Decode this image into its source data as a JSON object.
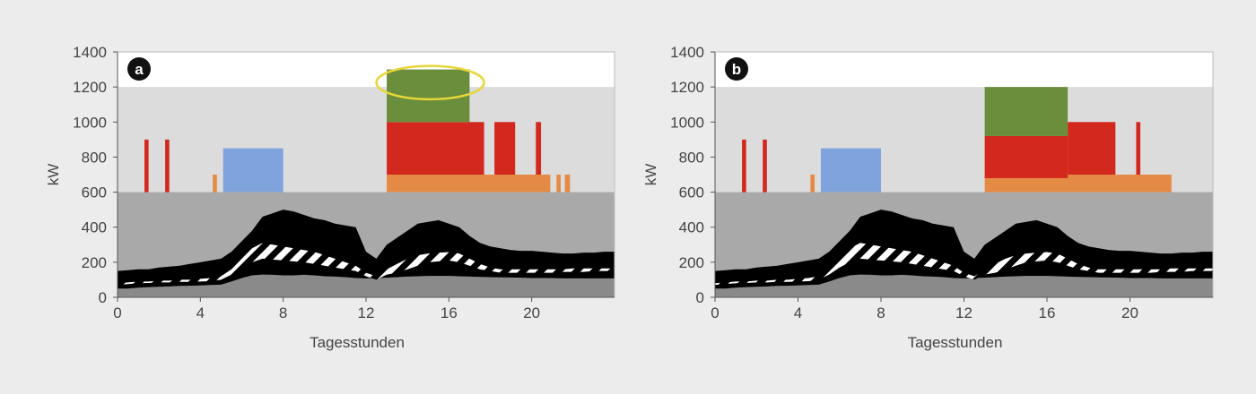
{
  "chart_data": [
    {
      "type": "bar",
      "panel_label": "a",
      "xlabel": "Tagesstunden",
      "ylabel": "kW",
      "xlim": [
        0,
        24
      ],
      "ylim": [
        0,
        1400
      ],
      "x_ticks": [
        0,
        4,
        8,
        12,
        16,
        20
      ],
      "y_ticks": [
        0,
        200,
        400,
        600,
        800,
        1000,
        1200,
        1400
      ],
      "background_bands": [
        {
          "y0": 1200,
          "y1": 1400,
          "color": "#ffffff"
        },
        {
          "y0": 600,
          "y1": 1200,
          "color": "#dcdcdc"
        },
        {
          "y0": 0,
          "y1": 600,
          "color": "#a9a9a9"
        }
      ],
      "blocks": [
        {
          "x0": 1.3,
          "x1": 1.5,
          "y0": 600,
          "y1": 900,
          "color": "#d2281e"
        },
        {
          "x0": 2.3,
          "x1": 2.5,
          "y0": 600,
          "y1": 900,
          "color": "#d2281e"
        },
        {
          "x0": 4.6,
          "x1": 4.8,
          "y0": 600,
          "y1": 700,
          "color": "#e58a45"
        },
        {
          "x0": 5.1,
          "x1": 8.0,
          "y0": 600,
          "y1": 850,
          "color": "#7fa3dc"
        },
        {
          "x0": 13.0,
          "x1": 20.9,
          "y0": 600,
          "y1": 700,
          "color": "#e58a45"
        },
        {
          "x0": 21.2,
          "x1": 21.4,
          "y0": 600,
          "y1": 700,
          "color": "#e58a45"
        },
        {
          "x0": 21.6,
          "x1": 21.85,
          "y0": 600,
          "y1": 700,
          "color": "#e58a45"
        },
        {
          "x0": 13.0,
          "x1": 17.7,
          "y0": 700,
          "y1": 1000,
          "color": "#d2281e"
        },
        {
          "x0": 18.2,
          "x1": 19.2,
          "y0": 700,
          "y1": 1000,
          "color": "#d2281e"
        },
        {
          "x0": 20.2,
          "x1": 20.45,
          "y0": 700,
          "y1": 1000,
          "color": "#d2281e"
        },
        {
          "x0": 13.0,
          "x1": 17.0,
          "y0": 1000,
          "y1": 1300,
          "color": "#6b8e3c"
        }
      ],
      "highlight": {
        "cx": 15.1,
        "cy": 1225,
        "rx": 2.6,
        "ry": 95,
        "color": "#e9d63a"
      },
      "load_profile": {
        "x": [
          0,
          0.5,
          1,
          1.5,
          2,
          2.5,
          3,
          3.5,
          4,
          4.5,
          5,
          5.5,
          6,
          6.5,
          7,
          7.5,
          8,
          8.5,
          9,
          9.5,
          10,
          10.5,
          11,
          11.5,
          12,
          12.5,
          13,
          13.5,
          14,
          14.5,
          15,
          15.5,
          16,
          16.5,
          17,
          17.5,
          18,
          18.5,
          19,
          19.5,
          20,
          20.5,
          21,
          21.5,
          22,
          22.5,
          23,
          23.5,
          24
        ],
        "base": [
          50,
          50,
          55,
          58,
          60,
          62,
          65,
          66,
          68,
          70,
          72,
          90,
          110,
          125,
          130,
          128,
          125,
          125,
          128,
          125,
          120,
          118,
          115,
          110,
          108,
          110,
          112,
          115,
          118,
          120,
          122,
          122,
          122,
          120,
          118,
          116,
          115,
          114,
          113,
          112,
          110,
          110,
          110,
          108,
          108,
          108,
          108,
          108,
          108
        ],
        "lower": [
          70,
          75,
          80,
          82,
          85,
          85,
          88,
          88,
          90,
          92,
          100,
          130,
          170,
          200,
          220,
          215,
          210,
          205,
          200,
          190,
          180,
          170,
          160,
          150,
          120,
          100,
          130,
          140,
          160,
          180,
          200,
          205,
          210,
          200,
          180,
          160,
          150,
          140,
          140,
          140,
          140,
          140,
          140,
          145,
          145,
          145,
          150,
          150,
          150
        ],
        "mid": [
          80,
          85,
          90,
          90,
          95,
          95,
          100,
          100,
          105,
          110,
          120,
          160,
          220,
          280,
          310,
          300,
          290,
          280,
          270,
          260,
          240,
          220,
          200,
          180,
          140,
          120,
          160,
          190,
          220,
          240,
          250,
          255,
          258,
          250,
          220,
          190,
          170,
          160,
          160,
          160,
          160,
          160,
          160,
          160,
          165,
          165,
          165,
          165,
          165
        ],
        "upper": [
          150,
          155,
          160,
          160,
          170,
          175,
          180,
          190,
          200,
          210,
          220,
          260,
          320,
          380,
          460,
          480,
          500,
          490,
          470,
          450,
          440,
          420,
          410,
          400,
          260,
          220,
          300,
          340,
          380,
          420,
          430,
          440,
          420,
          400,
          350,
          310,
          290,
          280,
          270,
          265,
          265,
          260,
          255,
          250,
          250,
          255,
          255,
          260,
          260
        ]
      }
    },
    {
      "type": "bar",
      "panel_label": "b",
      "xlabel": "Tagesstunden",
      "ylabel": "kW",
      "xlim": [
        0,
        24
      ],
      "ylim": [
        0,
        1400
      ],
      "x_ticks": [
        0,
        4,
        8,
        12,
        16,
        20
      ],
      "y_ticks": [
        0,
        200,
        400,
        600,
        800,
        1000,
        1200,
        1400
      ],
      "background_bands": [
        {
          "y0": 1200,
          "y1": 1400,
          "color": "#ffffff"
        },
        {
          "y0": 600,
          "y1": 1200,
          "color": "#dcdcdc"
        },
        {
          "y0": 0,
          "y1": 600,
          "color": "#a9a9a9"
        }
      ],
      "blocks": [
        {
          "x0": 1.3,
          "x1": 1.5,
          "y0": 600,
          "y1": 900,
          "color": "#d2281e"
        },
        {
          "x0": 2.3,
          "x1": 2.5,
          "y0": 600,
          "y1": 900,
          "color": "#d2281e"
        },
        {
          "x0": 4.6,
          "x1": 4.8,
          "y0": 600,
          "y1": 700,
          "color": "#e58a45"
        },
        {
          "x0": 5.1,
          "x1": 8.0,
          "y0": 600,
          "y1": 850,
          "color": "#7fa3dc"
        },
        {
          "x0": 13.0,
          "x1": 22.0,
          "y0": 600,
          "y1": 700,
          "color": "#e58a45"
        },
        {
          "x0": 13.0,
          "x1": 17.0,
          "y0": 680,
          "y1": 920,
          "color": "#d2281e"
        },
        {
          "x0": 17.0,
          "x1": 19.3,
          "y0": 700,
          "y1": 1000,
          "color": "#d2281e"
        },
        {
          "x0": 20.3,
          "x1": 20.5,
          "y0": 700,
          "y1": 1000,
          "color": "#d2281e"
        },
        {
          "x0": 13.0,
          "x1": 17.0,
          "y0": 920,
          "y1": 1200,
          "color": "#6b8e3c"
        }
      ],
      "load_profile": {
        "x": [
          0,
          0.5,
          1,
          1.5,
          2,
          2.5,
          3,
          3.5,
          4,
          4.5,
          5,
          5.5,
          6,
          6.5,
          7,
          7.5,
          8,
          8.5,
          9,
          9.5,
          10,
          10.5,
          11,
          11.5,
          12,
          12.5,
          13,
          13.5,
          14,
          14.5,
          15,
          15.5,
          16,
          16.5,
          17,
          17.5,
          18,
          18.5,
          19,
          19.5,
          20,
          20.5,
          21,
          21.5,
          22,
          22.5,
          23,
          23.5,
          24
        ],
        "base": [
          50,
          50,
          55,
          58,
          60,
          62,
          65,
          66,
          68,
          70,
          72,
          90,
          110,
          125,
          130,
          128,
          125,
          125,
          128,
          125,
          120,
          118,
          115,
          110,
          108,
          110,
          112,
          115,
          118,
          120,
          122,
          122,
          122,
          120,
          118,
          116,
          115,
          114,
          113,
          112,
          110,
          110,
          110,
          108,
          108,
          108,
          108,
          108,
          108
        ],
        "lower": [
          70,
          75,
          80,
          82,
          85,
          85,
          88,
          88,
          90,
          92,
          100,
          130,
          170,
          200,
          220,
          215,
          210,
          205,
          200,
          190,
          180,
          170,
          160,
          150,
          120,
          100,
          130,
          140,
          160,
          180,
          200,
          205,
          210,
          200,
          180,
          160,
          150,
          140,
          140,
          140,
          140,
          140,
          140,
          145,
          145,
          145,
          150,
          150,
          150
        ],
        "mid": [
          80,
          85,
          90,
          90,
          95,
          95,
          100,
          100,
          105,
          110,
          120,
          160,
          220,
          280,
          310,
          300,
          290,
          280,
          270,
          260,
          240,
          220,
          200,
          180,
          140,
          120,
          160,
          190,
          220,
          240,
          250,
          255,
          258,
          250,
          220,
          190,
          170,
          160,
          160,
          160,
          160,
          160,
          160,
          160,
          165,
          165,
          165,
          165,
          165
        ],
        "upper": [
          150,
          155,
          160,
          160,
          170,
          175,
          180,
          190,
          200,
          210,
          220,
          260,
          320,
          380,
          460,
          480,
          500,
          490,
          470,
          450,
          440,
          420,
          410,
          400,
          260,
          220,
          300,
          340,
          380,
          420,
          430,
          440,
          420,
          400,
          350,
          310,
          290,
          280,
          270,
          265,
          265,
          260,
          255,
          250,
          250,
          255,
          255,
          260,
          260
        ]
      }
    }
  ]
}
